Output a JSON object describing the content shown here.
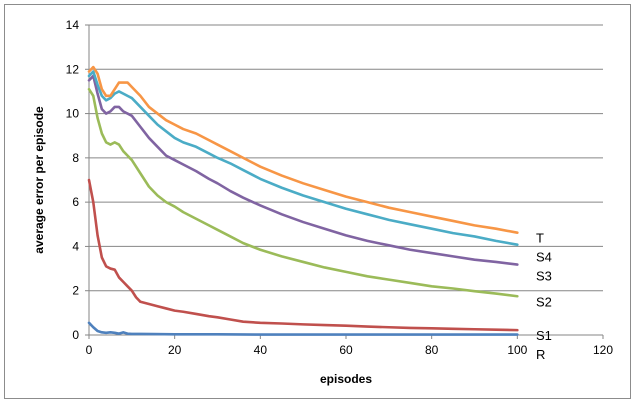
{
  "chart_data": {
    "type": "line",
    "title": "",
    "xlabel": "episodes",
    "ylabel": "average error per episode",
    "xlim": [
      0,
      120
    ],
    "ylim": [
      0,
      14
    ],
    "xticks": [
      0,
      20,
      40,
      60,
      80,
      100,
      120
    ],
    "yticks": [
      0,
      2,
      4,
      6,
      8,
      10,
      12,
      14
    ],
    "grid": "horizontal",
    "legend": "labels at line ends",
    "series": [
      {
        "name": "T",
        "color": "#F79646",
        "points": [
          [
            0,
            11.9
          ],
          [
            1,
            12.1
          ],
          [
            2,
            11.8
          ],
          [
            3,
            11.1
          ],
          [
            4,
            10.8
          ],
          [
            5,
            10.8
          ],
          [
            6,
            11.1
          ],
          [
            7,
            11.4
          ],
          [
            8,
            11.4
          ],
          [
            9,
            11.4
          ],
          [
            10,
            11.2
          ],
          [
            12,
            10.8
          ],
          [
            14,
            10.3
          ],
          [
            16,
            10.0
          ],
          [
            18,
            9.7
          ],
          [
            20,
            9.5
          ],
          [
            22,
            9.3
          ],
          [
            25,
            9.1
          ],
          [
            28,
            8.8
          ],
          [
            30,
            8.6
          ],
          [
            33,
            8.3
          ],
          [
            36,
            8.0
          ],
          [
            40,
            7.6
          ],
          [
            45,
            7.2
          ],
          [
            50,
            6.85
          ],
          [
            55,
            6.55
          ],
          [
            60,
            6.25
          ],
          [
            65,
            6.0
          ],
          [
            70,
            5.75
          ],
          [
            75,
            5.55
          ],
          [
            80,
            5.35
          ],
          [
            85,
            5.15
          ],
          [
            90,
            4.95
          ],
          [
            95,
            4.8
          ],
          [
            100,
            4.62
          ]
        ]
      },
      {
        "name": "S4",
        "color": "#4BACC6",
        "points": [
          [
            0,
            11.7
          ],
          [
            1,
            11.9
          ],
          [
            2,
            11.3
          ],
          [
            3,
            10.8
          ],
          [
            4,
            10.6
          ],
          [
            5,
            10.7
          ],
          [
            6,
            10.9
          ],
          [
            7,
            11.0
          ],
          [
            8,
            10.9
          ],
          [
            9,
            10.8
          ],
          [
            10,
            10.7
          ],
          [
            12,
            10.3
          ],
          [
            14,
            9.9
          ],
          [
            16,
            9.5
          ],
          [
            18,
            9.2
          ],
          [
            20,
            8.9
          ],
          [
            22,
            8.7
          ],
          [
            25,
            8.5
          ],
          [
            28,
            8.2
          ],
          [
            30,
            8.0
          ],
          [
            33,
            7.75
          ],
          [
            36,
            7.45
          ],
          [
            40,
            7.05
          ],
          [
            45,
            6.65
          ],
          [
            50,
            6.3
          ],
          [
            55,
            6.0
          ],
          [
            60,
            5.7
          ],
          [
            65,
            5.45
          ],
          [
            70,
            5.2
          ],
          [
            75,
            5.0
          ],
          [
            80,
            4.8
          ],
          [
            85,
            4.6
          ],
          [
            90,
            4.45
          ],
          [
            95,
            4.25
          ],
          [
            100,
            4.08
          ]
        ]
      },
      {
        "name": "S3",
        "color": "#8064A2",
        "points": [
          [
            0,
            11.5
          ],
          [
            1,
            11.7
          ],
          [
            2,
            10.9
          ],
          [
            3,
            10.2
          ],
          [
            4,
            10.0
          ],
          [
            5,
            10.1
          ],
          [
            6,
            10.3
          ],
          [
            7,
            10.3
          ],
          [
            8,
            10.1
          ],
          [
            9,
            10.0
          ],
          [
            10,
            9.9
          ],
          [
            12,
            9.4
          ],
          [
            14,
            8.9
          ],
          [
            16,
            8.5
          ],
          [
            18,
            8.1
          ],
          [
            20,
            7.9
          ],
          [
            22,
            7.7
          ],
          [
            25,
            7.4
          ],
          [
            28,
            7.05
          ],
          [
            30,
            6.85
          ],
          [
            33,
            6.5
          ],
          [
            36,
            6.2
          ],
          [
            40,
            5.85
          ],
          [
            45,
            5.45
          ],
          [
            50,
            5.1
          ],
          [
            55,
            4.8
          ],
          [
            60,
            4.5
          ],
          [
            65,
            4.25
          ],
          [
            70,
            4.05
          ],
          [
            75,
            3.85
          ],
          [
            80,
            3.7
          ],
          [
            85,
            3.55
          ],
          [
            90,
            3.4
          ],
          [
            95,
            3.3
          ],
          [
            100,
            3.18
          ]
        ]
      },
      {
        "name": "S2",
        "color": "#9BBB59",
        "points": [
          [
            0,
            11.1
          ],
          [
            1,
            10.8
          ],
          [
            2,
            9.8
          ],
          [
            3,
            9.1
          ],
          [
            4,
            8.7
          ],
          [
            5,
            8.6
          ],
          [
            6,
            8.7
          ],
          [
            7,
            8.6
          ],
          [
            8,
            8.3
          ],
          [
            9,
            8.1
          ],
          [
            10,
            7.9
          ],
          [
            12,
            7.3
          ],
          [
            14,
            6.7
          ],
          [
            16,
            6.3
          ],
          [
            18,
            6.0
          ],
          [
            20,
            5.8
          ],
          [
            22,
            5.55
          ],
          [
            25,
            5.25
          ],
          [
            28,
            4.95
          ],
          [
            30,
            4.75
          ],
          [
            33,
            4.45
          ],
          [
            36,
            4.15
          ],
          [
            40,
            3.85
          ],
          [
            45,
            3.55
          ],
          [
            50,
            3.3
          ],
          [
            55,
            3.05
          ],
          [
            60,
            2.85
          ],
          [
            65,
            2.65
          ],
          [
            70,
            2.5
          ],
          [
            75,
            2.35
          ],
          [
            80,
            2.2
          ],
          [
            85,
            2.1
          ],
          [
            90,
            1.98
          ],
          [
            95,
            1.87
          ],
          [
            100,
            1.75
          ]
        ]
      },
      {
        "name": "S1",
        "color": "#C0504D",
        "points": [
          [
            0,
            7.0
          ],
          [
            1,
            6.0
          ],
          [
            2,
            4.5
          ],
          [
            3,
            3.5
          ],
          [
            4,
            3.1
          ],
          [
            5,
            3.0
          ],
          [
            6,
            2.95
          ],
          [
            7,
            2.6
          ],
          [
            8,
            2.4
          ],
          [
            9,
            2.2
          ],
          [
            10,
            2.0
          ],
          [
            11,
            1.7
          ],
          [
            12,
            1.5
          ],
          [
            14,
            1.4
          ],
          [
            16,
            1.3
          ],
          [
            18,
            1.2
          ],
          [
            20,
            1.1
          ],
          [
            22,
            1.05
          ],
          [
            25,
            0.95
          ],
          [
            28,
            0.85
          ],
          [
            30,
            0.8
          ],
          [
            33,
            0.7
          ],
          [
            36,
            0.6
          ],
          [
            40,
            0.55
          ],
          [
            45,
            0.52
          ],
          [
            50,
            0.48
          ],
          [
            55,
            0.45
          ],
          [
            60,
            0.42
          ],
          [
            65,
            0.38
          ],
          [
            70,
            0.35
          ],
          [
            75,
            0.32
          ],
          [
            80,
            0.3
          ],
          [
            85,
            0.28
          ],
          [
            90,
            0.26
          ],
          [
            95,
            0.24
          ],
          [
            100,
            0.22
          ]
        ]
      },
      {
        "name": "R",
        "color": "#4F81BD",
        "points": [
          [
            0,
            0.55
          ],
          [
            1,
            0.35
          ],
          [
            2,
            0.18
          ],
          [
            3,
            0.12
          ],
          [
            4,
            0.1
          ],
          [
            5,
            0.12
          ],
          [
            6,
            0.1
          ],
          [
            7,
            0.06
          ],
          [
            8,
            0.12
          ],
          [
            9,
            0.06
          ],
          [
            10,
            0.05
          ],
          [
            12,
            0.05
          ],
          [
            15,
            0.04
          ],
          [
            20,
            0.03
          ],
          [
            30,
            0.03
          ],
          [
            40,
            0.02
          ],
          [
            60,
            0.02
          ],
          [
            80,
            0.02
          ],
          [
            100,
            0.02
          ]
        ]
      }
    ]
  }
}
